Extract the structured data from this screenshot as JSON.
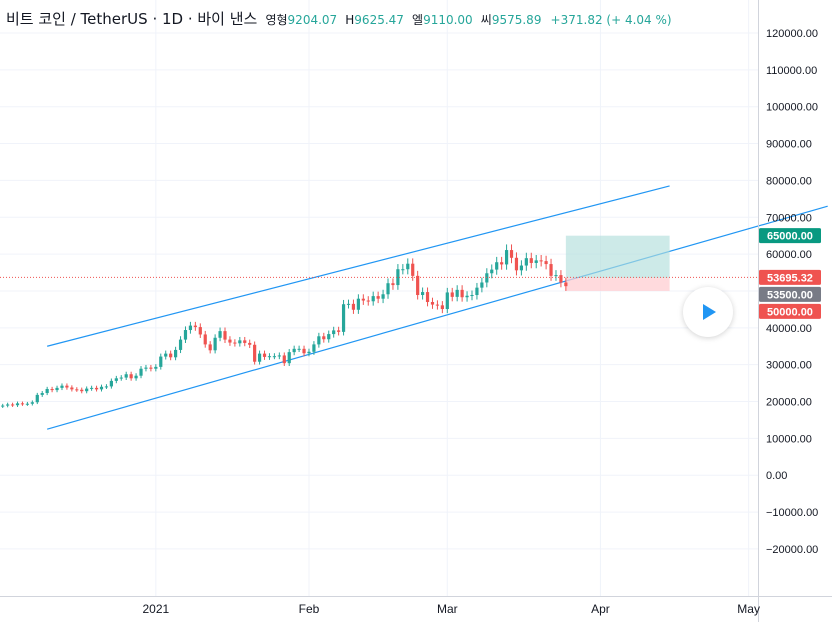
{
  "header": {
    "symbol": "비트 코인 / TetherUS · 1D · 바이 낸스",
    "open_label": "영형",
    "open": "9204.07",
    "high_label": "H",
    "high": "9625.47",
    "low_label": "엘",
    "low": "9110.00",
    "close_label": "씨",
    "close": "9575.89",
    "change": "+371.82 (+ 4.04 %)"
  },
  "colors": {
    "up": "#26a69a",
    "down": "#ef5350",
    "channel": "#2196f3",
    "target_zone": "#b2dfdb",
    "stop_zone": "#ffcdd2",
    "current_badge": "#ef5350",
    "entry_badge": "#787b86",
    "target_badge": "#089981",
    "play": "#2196f3"
  },
  "chart_data": {
    "type": "candlestick",
    "x_axis": {
      "range": [
        "2020-12-01",
        "2021-05-15"
      ],
      "ticks": [
        {
          "date": "2021-01-01",
          "label": "2021"
        },
        {
          "date": "2021-02-01",
          "label": "Feb"
        },
        {
          "date": "2021-03-01",
          "label": "Mar"
        },
        {
          "date": "2021-04-01",
          "label": "Apr"
        },
        {
          "date": "2021-05-01",
          "label": "May"
        }
      ]
    },
    "y_axis": {
      "range": [
        -20000,
        125000
      ],
      "ticks": [
        "120000.00",
        "110000.00",
        "100000.00",
        "90000.00",
        "80000.00",
        "70000.00",
        "60000.00",
        "50000.00",
        "40000.00",
        "30000.00",
        "20000.00",
        "10000.00",
        "0.00",
        "−10000.00",
        "−20000.00"
      ]
    },
    "grid": true,
    "candles": [
      {
        "date": "2020-12-01",
        "close": 18900
      },
      {
        "date": "2020-12-02",
        "close": 19200
      },
      {
        "date": "2020-12-03",
        "close": 19000
      },
      {
        "date": "2020-12-04",
        "close": 19500
      },
      {
        "date": "2020-12-05",
        "close": 19300
      },
      {
        "date": "2020-12-06",
        "close": 19400
      },
      {
        "date": "2020-12-07",
        "close": 19800
      },
      {
        "date": "2020-12-08",
        "close": 21800
      },
      {
        "date": "2020-12-09",
        "close": 22300
      },
      {
        "date": "2020-12-10",
        "close": 23400
      },
      {
        "date": "2020-12-11",
        "close": 23100
      },
      {
        "date": "2020-12-12",
        "close": 23700
      },
      {
        "date": "2020-12-13",
        "close": 24300
      },
      {
        "date": "2020-12-14",
        "close": 23800
      },
      {
        "date": "2020-12-15",
        "close": 23300
      },
      {
        "date": "2020-12-16",
        "close": 23200
      },
      {
        "date": "2020-12-17",
        "close": 22800
      },
      {
        "date": "2020-12-18",
        "close": 23500
      },
      {
        "date": "2020-12-19",
        "close": 23700
      },
      {
        "date": "2020-12-20",
        "close": 23300
      },
      {
        "date": "2020-12-21",
        "close": 24000
      },
      {
        "date": "2020-12-22",
        "close": 24100
      },
      {
        "date": "2020-12-23",
        "close": 25600
      },
      {
        "date": "2020-12-24",
        "close": 26300
      },
      {
        "date": "2020-12-25",
        "close": 26500
      },
      {
        "date": "2020-12-26",
        "close": 27400
      },
      {
        "date": "2020-12-27",
        "close": 26300
      },
      {
        "date": "2020-12-28",
        "close": 27000
      },
      {
        "date": "2020-12-29",
        "close": 28900
      },
      {
        "date": "2020-12-30",
        "close": 29200
      },
      {
        "date": "2020-12-31",
        "close": 28900
      },
      {
        "date": "2021-01-01",
        "close": 29400
      },
      {
        "date": "2021-01-02",
        "close": 32200
      },
      {
        "date": "2021-01-03",
        "close": 33000
      },
      {
        "date": "2021-01-04",
        "close": 32000
      },
      {
        "date": "2021-01-05",
        "close": 34000
      },
      {
        "date": "2021-01-06",
        "close": 36800
      },
      {
        "date": "2021-01-07",
        "close": 39400
      },
      {
        "date": "2021-01-08",
        "close": 40600
      },
      {
        "date": "2021-01-09",
        "close": 40200
      },
      {
        "date": "2021-01-10",
        "close": 38200
      },
      {
        "date": "2021-01-11",
        "close": 35500
      },
      {
        "date": "2021-01-12",
        "close": 33900
      },
      {
        "date": "2021-01-13",
        "close": 37300
      },
      {
        "date": "2021-01-14",
        "close": 39100
      },
      {
        "date": "2021-01-15",
        "close": 36800
      },
      {
        "date": "2021-01-16",
        "close": 36000
      },
      {
        "date": "2021-01-17",
        "close": 35800
      },
      {
        "date": "2021-01-18",
        "close": 36600
      },
      {
        "date": "2021-01-19",
        "close": 35900
      },
      {
        "date": "2021-01-20",
        "close": 35400
      },
      {
        "date": "2021-01-21",
        "close": 30800
      },
      {
        "date": "2021-01-22",
        "close": 33000
      },
      {
        "date": "2021-01-23",
        "close": 32100
      },
      {
        "date": "2021-01-24",
        "close": 32300
      },
      {
        "date": "2021-01-25",
        "close": 32300
      },
      {
        "date": "2021-01-26",
        "close": 32500
      },
      {
        "date": "2021-01-27",
        "close": 30400
      },
      {
        "date": "2021-01-28",
        "close": 33400
      },
      {
        "date": "2021-01-29",
        "close": 34300
      },
      {
        "date": "2021-01-30",
        "close": 34300
      },
      {
        "date": "2021-01-31",
        "close": 33100
      },
      {
        "date": "2021-02-01",
        "close": 33500
      },
      {
        "date": "2021-02-02",
        "close": 35500
      },
      {
        "date": "2021-02-03",
        "close": 37700
      },
      {
        "date": "2021-02-04",
        "close": 36900
      },
      {
        "date": "2021-02-05",
        "close": 38300
      },
      {
        "date": "2021-02-06",
        "close": 39300
      },
      {
        "date": "2021-02-07",
        "close": 38900
      },
      {
        "date": "2021-02-08",
        "close": 46400
      },
      {
        "date": "2021-02-09",
        "close": 46500
      },
      {
        "date": "2021-02-10",
        "close": 44900
      },
      {
        "date": "2021-02-11",
        "close": 47900
      },
      {
        "date": "2021-02-12",
        "close": 47400
      },
      {
        "date": "2021-02-13",
        "close": 47200
      },
      {
        "date": "2021-02-14",
        "close": 48600
      },
      {
        "date": "2021-02-15",
        "close": 47900
      },
      {
        "date": "2021-02-16",
        "close": 49100
      },
      {
        "date": "2021-02-17",
        "close": 52100
      },
      {
        "date": "2021-02-18",
        "close": 51600
      },
      {
        "date": "2021-02-19",
        "close": 55900
      },
      {
        "date": "2021-02-20",
        "close": 55900
      },
      {
        "date": "2021-02-21",
        "close": 57400
      },
      {
        "date": "2021-02-22",
        "close": 54100
      },
      {
        "date": "2021-02-23",
        "close": 48900
      },
      {
        "date": "2021-02-24",
        "close": 49700
      },
      {
        "date": "2021-02-25",
        "close": 47000
      },
      {
        "date": "2021-02-26",
        "close": 46300
      },
      {
        "date": "2021-02-27",
        "close": 46100
      },
      {
        "date": "2021-02-28",
        "close": 45100
      },
      {
        "date": "2021-03-01",
        "close": 49600
      },
      {
        "date": "2021-03-02",
        "close": 48400
      },
      {
        "date": "2021-03-03",
        "close": 50300
      },
      {
        "date": "2021-03-04",
        "close": 48300
      },
      {
        "date": "2021-03-05",
        "close": 48700
      },
      {
        "date": "2021-03-06",
        "close": 48900
      },
      {
        "date": "2021-03-07",
        "close": 50900
      },
      {
        "date": "2021-03-08",
        "close": 52300
      },
      {
        "date": "2021-03-09",
        "close": 54800
      },
      {
        "date": "2021-03-10",
        "close": 55800
      },
      {
        "date": "2021-03-11",
        "close": 57800
      },
      {
        "date": "2021-03-12",
        "close": 57200
      },
      {
        "date": "2021-03-13",
        "close": 61100
      },
      {
        "date": "2021-03-14",
        "close": 59000
      },
      {
        "date": "2021-03-15",
        "close": 55600
      },
      {
        "date": "2021-03-16",
        "close": 56900
      },
      {
        "date": "2021-03-17",
        "close": 58900
      },
      {
        "date": "2021-03-18",
        "close": 57600
      },
      {
        "date": "2021-03-19",
        "close": 58300
      },
      {
        "date": "2021-03-20",
        "close": 58100
      },
      {
        "date": "2021-03-21",
        "close": 57300
      },
      {
        "date": "2021-03-22",
        "close": 54100
      },
      {
        "date": "2021-03-23",
        "close": 54300
      },
      {
        "date": "2021-03-24",
        "close": 52300
      },
      {
        "date": "2021-03-25",
        "close": 51300
      }
    ],
    "channel": {
      "upper": [
        {
          "date": "2020-12-10",
          "value": 35000
        },
        {
          "date": "2021-04-15",
          "value": 78500
        }
      ],
      "lower": [
        {
          "date": "2020-12-10",
          "value": 12500
        },
        {
          "date": "2021-05-17",
          "value": 73000
        }
      ]
    },
    "position": {
      "start": "2021-03-25",
      "end": "2021-04-15",
      "entry": 53500,
      "target": 65000,
      "stop": 50000
    },
    "price_labels": [
      {
        "label": "65000.00",
        "value": 65000,
        "kind": "target"
      },
      {
        "label": "53695.32",
        "value": 53695.32,
        "kind": "current"
      },
      {
        "label": "53500.00",
        "value": 53500,
        "kind": "entry"
      },
      {
        "label": "50000.00",
        "value": 50000,
        "kind": "stop"
      }
    ],
    "current_price": 53695.32
  }
}
